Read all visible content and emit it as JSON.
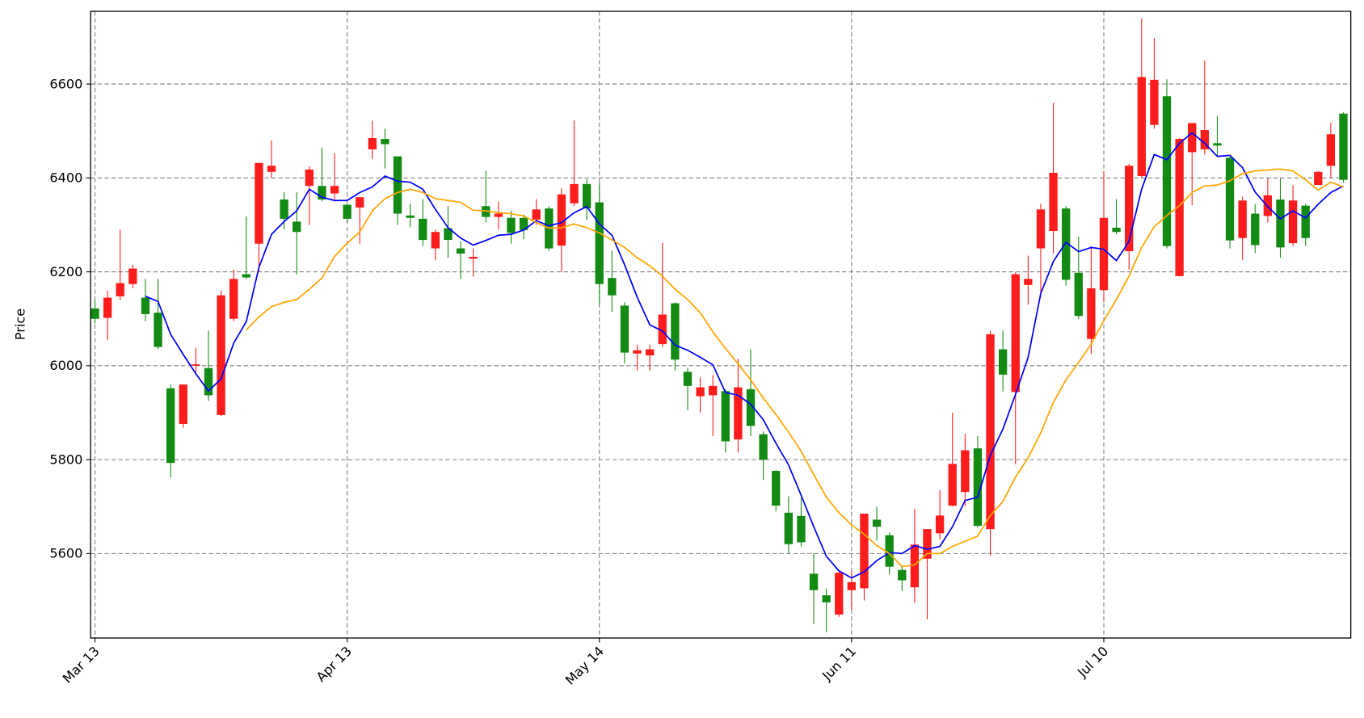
{
  "chart_data": {
    "type": "candlestick",
    "ylabel": "Price",
    "categories": [
      "Mar 13",
      null,
      null,
      null,
      null,
      null,
      null,
      null,
      null,
      null,
      null,
      null,
      null,
      null,
      null,
      null,
      null,
      null,
      null,
      null,
      "Apr 13",
      null,
      null,
      null,
      null,
      null,
      null,
      null,
      null,
      null,
      null,
      null,
      null,
      null,
      null,
      null,
      null,
      null,
      null,
      null,
      "May 14",
      null,
      null,
      null,
      null,
      null,
      null,
      null,
      null,
      null,
      null,
      null,
      null,
      null,
      null,
      null,
      null,
      null,
      null,
      null,
      "Jun 11",
      null,
      null,
      null,
      null,
      null,
      null,
      null,
      null,
      null,
      null,
      null,
      null,
      null,
      null,
      null,
      null,
      null,
      null,
      null,
      "Jul 10",
      null,
      null,
      null,
      null,
      null,
      null,
      null,
      null,
      null,
      null,
      null,
      null,
      null,
      null,
      null,
      null,
      null,
      null,
      null
    ],
    "open": [
      6122,
      6102,
      6148,
      6174,
      6145,
      6113,
      5952,
      5876,
      6000,
      5995,
      5895,
      6100,
      6195,
      6260,
      6413,
      6354,
      6307,
      6383,
      6383,
      6367,
      6343,
      6337,
      6461,
      6483,
      6446,
      6320,
      6313,
      6250,
      6293,
      6250,
      6228,
      6340,
      6317,
      6315,
      6315,
      6311,
      6335,
      6256,
      6346,
      6387,
      6348,
      6187,
      6128,
      6026,
      6022,
      6046,
      6133,
      5987,
      5935,
      5937,
      5946,
      5843,
      5950,
      5854,
      5776,
      5687,
      5680,
      5557,
      5511,
      5470,
      5522,
      5526,
      5672,
      5639,
      5565,
      5528,
      5589,
      5643,
      5702,
      5731,
      5824,
      5652,
      6035,
      5944,
      6172,
      6250,
      6287,
      6335,
      6198,
      6057,
      6161,
      6294,
      6244,
      6404,
      6513,
      6574,
      6191,
      6455,
      6461,
      6474,
      6443,
      6272,
      6324,
      6319,
      6354,
      6261,
      6341,
      6385,
      6426,
      6537
    ],
    "high": [
      6140,
      6160,
      6290,
      6215,
      6185,
      6185,
      5960,
      5960,
      6038,
      6075,
      6160,
      6205,
      6318,
      6432,
      6480,
      6370,
      6370,
      6425,
      6465,
      6453,
      6345,
      6360,
      6522,
      6505,
      6446,
      6345,
      6355,
      6290,
      6340,
      6265,
      6250,
      6415,
      6350,
      6330,
      6322,
      6355,
      6340,
      6378,
      6522,
      6397,
      6390,
      6245,
      6135,
      6045,
      6045,
      6262,
      6135,
      5995,
      5975,
      5980,
      5950,
      6015,
      6035,
      5860,
      5778,
      5722,
      5718,
      5600,
      5525,
      5562,
      5562,
      5685,
      5700,
      5645,
      5575,
      5695,
      5652,
      5735,
      5900,
      5855,
      5850,
      6075,
      6075,
      6200,
      6235,
      6345,
      6560,
      6340,
      6275,
      6255,
      6415,
      6355,
      6430,
      6740,
      6698,
      6610,
      6485,
      6517,
      6650,
      6532,
      6445,
      6360,
      6345,
      6400,
      6400,
      6385,
      6345,
      6415,
      6518,
      6540
    ],
    "low": [
      6090,
      6055,
      6140,
      6165,
      6095,
      6035,
      5762,
      5868,
      5980,
      5925,
      5893,
      6095,
      6185,
      6200,
      6400,
      6290,
      6195,
      6300,
      6350,
      6352,
      6305,
      6260,
      6440,
      6420,
      6300,
      6295,
      6255,
      6225,
      6230,
      6185,
      6190,
      6305,
      6290,
      6260,
      6270,
      6300,
      6245,
      6200,
      6340,
      6310,
      6130,
      6115,
      6005,
      5990,
      5990,
      6040,
      5990,
      5905,
      5900,
      5850,
      5815,
      5815,
      5850,
      5757,
      5690,
      5600,
      5615,
      5450,
      5432,
      5465,
      5480,
      5500,
      5628,
      5555,
      5520,
      5495,
      5460,
      5630,
      5700,
      5700,
      5655,
      5595,
      5945,
      5790,
      6130,
      6145,
      6240,
      6170,
      6100,
      6025,
      6135,
      6280,
      6205,
      6400,
      6505,
      6250,
      6190,
      6342,
      6450,
      6445,
      6250,
      6225,
      6240,
      6305,
      6230,
      6255,
      6255,
      6385,
      6400,
      6390
    ],
    "close": [
      6100,
      6145,
      6176,
      6207,
      6110,
      6040,
      5793,
      5960,
      6003,
      5937,
      6150,
      6185,
      6188,
      6432,
      6426,
      6313,
      6285,
      6418,
      6354,
      6383,
      6313,
      6359,
      6485,
      6472,
      6324,
      6315,
      6268,
      6285,
      6268,
      6239,
      6232,
      6317,
      6324,
      6283,
      6289,
      6333,
      6250,
      6365,
      6387,
      6335,
      6174,
      6150,
      6028,
      6033,
      6035,
      6109,
      6013,
      5957,
      5954,
      5957,
      5839,
      5954,
      5872,
      5800,
      5702,
      5620,
      5624,
      5522,
      5496,
      5559,
      5539,
      5685,
      5657,
      5572,
      5543,
      5619,
      5652,
      5681,
      5791,
      5820,
      5659,
      6067,
      5981,
      6195,
      6185,
      6333,
      6411,
      6183,
      6106,
      6165,
      6315,
      6285,
      6426,
      6615,
      6609,
      6255,
      6483,
      6517,
      6502,
      6469,
      6267,
      6352,
      6257,
      6363,
      6252,
      6352,
      6272,
      6413,
      6493,
      6396
    ],
    "up_color": "#ff1c1c",
    "down_color": "#138a13",
    "lines": [
      {
        "color": "#0000ff",
        "values": [
          null,
          null,
          null,
          null,
          6148,
          6137,
          6067,
          6024,
          5983,
          5946,
          5972,
          6048,
          6094,
          6209,
          6280,
          6307,
          6330,
          6376,
          6359,
          6352,
          6352,
          6369,
          6381,
          6404,
          6393,
          6391,
          6376,
          6333,
          6294,
          6272,
          6257,
          6267,
          6278,
          6280,
          6289,
          6309,
          6298,
          6305,
          6326,
          6339,
          6302,
          6278,
          6215,
          6146,
          6087,
          6074,
          6044,
          6033,
          6018,
          6002,
          5943,
          5937,
          5918,
          5885,
          5835,
          5789,
          5724,
          5657,
          5594,
          5563,
          5548,
          5561,
          5585,
          5602,
          5600,
          5617,
          5609,
          5615,
          5657,
          5713,
          5720,
          5809,
          5865,
          5939,
          6018,
          6154,
          6222,
          6263,
          6243,
          6252,
          6248,
          6224,
          6265,
          6376,
          6450,
          6439,
          6474,
          6496,
          6474,
          6446,
          6448,
          6422,
          6370,
          6339,
          6313,
          6330,
          6315,
          6344,
          6369,
          6383
        ]
      },
      {
        "color": "#ffa500",
        "values": [
          null,
          null,
          null,
          null,
          null,
          null,
          null,
          null,
          null,
          null,
          null,
          null,
          6076,
          6104,
          6126,
          6135,
          6141,
          6163,
          6187,
          6233,
          6261,
          6285,
          6330,
          6356,
          6369,
          6376,
          6369,
          6356,
          6352,
          6348,
          6331,
          6330,
          6326,
          6324,
          6319,
          6305,
          6293,
          6294,
          6302,
          6294,
          6283,
          6268,
          6252,
          6230,
          6213,
          6191,
          6163,
          6141,
          6113,
          6072,
          6037,
          6004,
          5970,
          5931,
          5896,
          5859,
          5818,
          5768,
          5720,
          5687,
          5661,
          5641,
          5617,
          5600,
          5572,
          5576,
          5600,
          5600,
          5615,
          5626,
          5637,
          5681,
          5711,
          5763,
          5804,
          5857,
          5922,
          5970,
          6007,
          6046,
          6096,
          6141,
          6191,
          6252,
          6296,
          6320,
          6341,
          6369,
          6383,
          6385,
          6394,
          6409,
          6415,
          6417,
          6419,
          6415,
          6396,
          6374,
          6391,
          6381
        ]
      }
    ],
    "ylim": [
      5420,
      6755
    ],
    "yticks": [
      5600,
      5800,
      6000,
      6200,
      6400,
      6600
    ],
    "grid": true
  }
}
